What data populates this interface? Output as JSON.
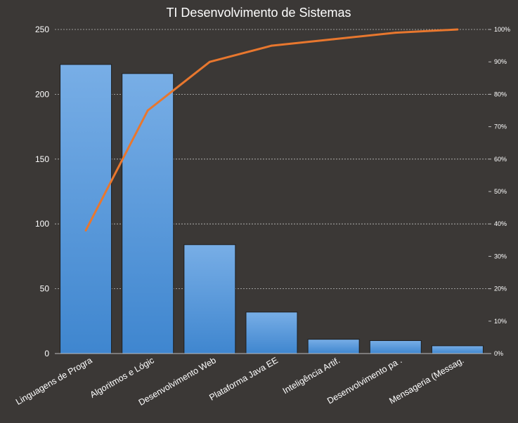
{
  "chart_data": {
    "type": "bar",
    "title": "TI Desenvolvimento  de Sistemas",
    "categories": [
      "Linguagens de Progra",
      "Algoritmos e Lógic",
      "Desenvolvimento Web",
      "Plataforma Java EE",
      "Inteligência Artif.",
      "Desenvolvimento pa .",
      "Mensageria (Messag."
    ],
    "series": [
      {
        "values": [
          223,
          216,
          84,
          32,
          11,
          10,
          6
        ]
      },
      {
        "values": [
          38,
          75,
          90,
          95,
          97,
          99,
          100
        ],
        "axis": "right"
      }
    ],
    "ylim": [
      0,
      250
    ],
    "yticks": [
      "0",
      "50",
      "100",
      "150",
      "200",
      "250"
    ],
    "y2lim": [
      0,
      100
    ],
    "y2ticks": [
      "0%",
      "10%",
      "20%",
      "30%",
      "40%",
      "50%",
      "60%",
      "70%",
      "80%",
      "90%",
      "100%"
    ],
    "grid": true,
    "colors": {
      "bar": "#4a90d9",
      "line": "#e8772e",
      "background": "#3b3836"
    }
  }
}
